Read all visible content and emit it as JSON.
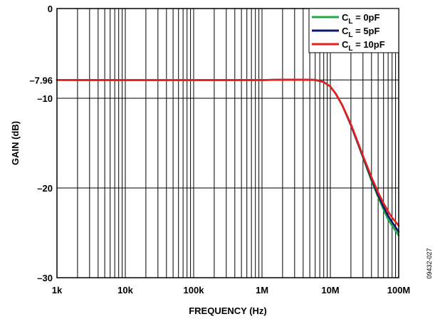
{
  "chart_data": {
    "type": "line",
    "xlabel": "FREQUENCY (Hz)",
    "ylabel": "GAIN (dB)",
    "x_scale": "log",
    "xlim": [
      1000,
      100000000
    ],
    "ylim": [
      -30,
      0
    ],
    "x_ticks": [
      {
        "value": 1000,
        "label": "1k"
      },
      {
        "value": 10000,
        "label": "10k"
      },
      {
        "value": 100000,
        "label": "100k"
      },
      {
        "value": 1000000,
        "label": "1M"
      },
      {
        "value": 10000000,
        "label": "10M"
      },
      {
        "value": 100000000,
        "label": "100M"
      }
    ],
    "y_ticks": [
      {
        "value": 0,
        "label": "0"
      },
      {
        "value": -7.96,
        "label": "–7.96"
      },
      {
        "value": -10,
        "label": "–10"
      },
      {
        "value": -20,
        "label": "–20"
      },
      {
        "value": -30,
        "label": "–30"
      }
    ],
    "grid": true,
    "legend_position": "top-right",
    "figure_id": "09432-027",
    "series": [
      {
        "name": "C_L = 0pF",
        "name_parts": {
          "base": "C",
          "sub": "L",
          "rest": " = 0pF"
        },
        "color": "#22aa44",
        "x": [
          1000,
          10000,
          100000,
          1000000,
          3000000,
          6000000,
          8000000,
          10000000,
          12000000,
          15000000,
          20000000,
          30000000,
          40000000,
          50000000,
          60000000,
          70000000,
          80000000,
          100000000
        ],
        "y": [
          -7.96,
          -7.98,
          -7.98,
          -7.97,
          -7.92,
          -7.96,
          -8.2,
          -8.7,
          -9.5,
          -10.8,
          -13.0,
          -16.6,
          -19.2,
          -21.0,
          -22.4,
          -23.5,
          -24.2,
          -25.3
        ]
      },
      {
        "name": "C_L = 5pF",
        "name_parts": {
          "base": "C",
          "sub": "L",
          "rest": " = 5pF"
        },
        "color": "#0a1a6e",
        "x": [
          1000,
          10000,
          100000,
          1000000,
          3000000,
          6000000,
          8000000,
          10000000,
          12000000,
          15000000,
          20000000,
          30000000,
          40000000,
          50000000,
          60000000,
          70000000,
          80000000,
          100000000
        ],
        "y": [
          -7.96,
          -7.98,
          -7.98,
          -7.97,
          -7.92,
          -7.95,
          -8.2,
          -8.7,
          -9.5,
          -10.8,
          -13.0,
          -16.5,
          -19.0,
          -20.8,
          -22.1,
          -23.1,
          -23.8,
          -24.9
        ]
      },
      {
        "name": "C_L = 10pF",
        "name_parts": {
          "base": "C",
          "sub": "L",
          "rest": " = 10pF"
        },
        "color": "#e8201c",
        "x": [
          1000,
          10000,
          100000,
          1000000,
          3000000,
          6000000,
          8000000,
          10000000,
          12000000,
          15000000,
          20000000,
          30000000,
          40000000,
          50000000,
          60000000,
          70000000,
          80000000,
          100000000
        ],
        "y": [
          -7.96,
          -7.98,
          -7.98,
          -7.97,
          -7.92,
          -7.94,
          -8.2,
          -8.7,
          -9.5,
          -10.8,
          -12.9,
          -16.4,
          -18.8,
          -20.5,
          -21.7,
          -22.6,
          -23.3,
          -24.2
        ]
      }
    ]
  }
}
